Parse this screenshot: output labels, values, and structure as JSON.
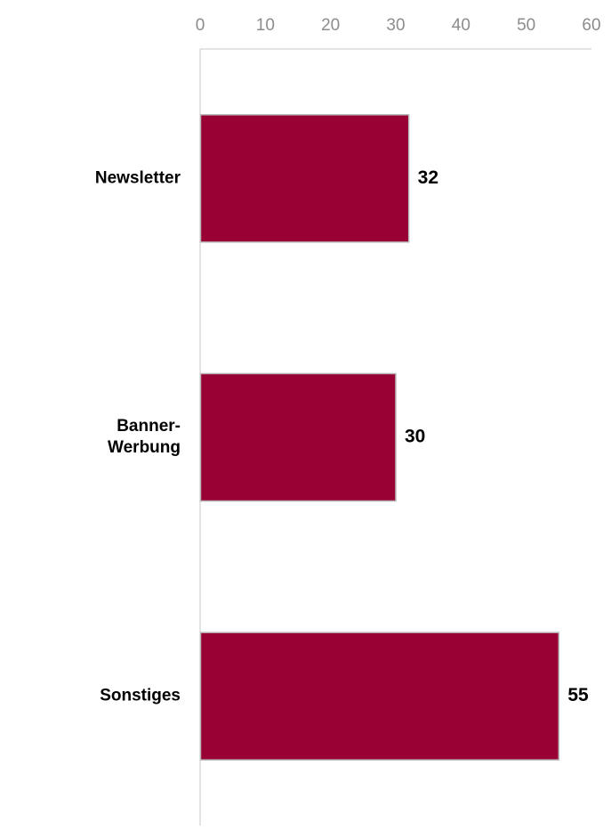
{
  "chart_data": {
    "type": "bar",
    "orientation": "horizontal",
    "categories": [
      [
        "Newsletter"
      ],
      [
        "Banner-",
        "Werbung"
      ],
      [
        "Sonstiges"
      ]
    ],
    "values": [
      32,
      30,
      55
    ],
    "value_labels": [
      "32",
      "30",
      "55"
    ],
    "xlim": [
      0,
      60
    ],
    "x_ticks": [
      "0",
      "10",
      "20",
      "30",
      "40",
      "50",
      "60"
    ],
    "x_axis_position": "top",
    "grid": false,
    "legend": "none",
    "title": "",
    "xlabel": "",
    "ylabel": "",
    "colors": {
      "bar": "#990033",
      "bar_border": "#b8b8b8",
      "axis": "#c8c8c8",
      "tick_text": "#8c8c8c",
      "label_text": "#000000"
    }
  }
}
